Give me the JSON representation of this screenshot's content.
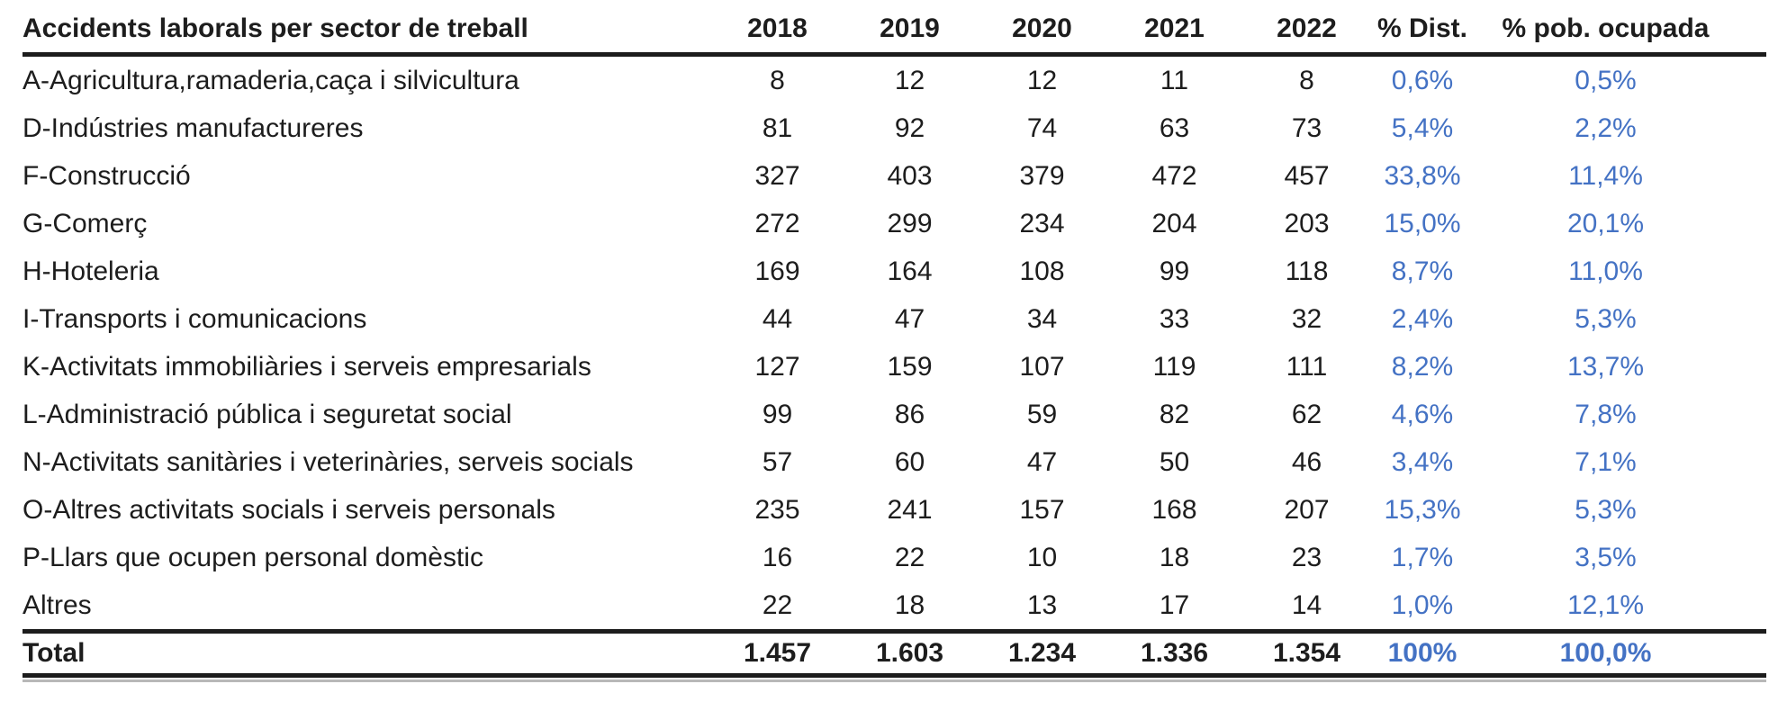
{
  "colors": {
    "accent_blue": "#4472C4",
    "text": "#1d1d1d",
    "rule_black": "#1c1c1c",
    "rule_gray": "#b8b8b8"
  },
  "table": {
    "header": {
      "sector": "Accidents laborals per sector de treball",
      "years": [
        "2018",
        "2019",
        "2020",
        "2021",
        "2022"
      ],
      "dist": "% Dist.",
      "pob": "% pob. ocupada"
    },
    "rows": [
      {
        "sector": "A-Agricultura,ramaderia,caça i silvicultura",
        "values": [
          "8",
          "12",
          "12",
          "11",
          "8"
        ],
        "dist": "0,6%",
        "pob": "0,5%"
      },
      {
        "sector": "D-Indústries manufactureres",
        "values": [
          "81",
          "92",
          "74",
          "63",
          "73"
        ],
        "dist": "5,4%",
        "pob": "2,2%"
      },
      {
        "sector": "F-Construcció",
        "values": [
          "327",
          "403",
          "379",
          "472",
          "457"
        ],
        "dist": "33,8%",
        "pob": "11,4%"
      },
      {
        "sector": "G-Comerç",
        "values": [
          "272",
          "299",
          "234",
          "204",
          "203"
        ],
        "dist": "15,0%",
        "pob": "20,1%"
      },
      {
        "sector": "H-Hoteleria",
        "values": [
          "169",
          "164",
          "108",
          "99",
          "118"
        ],
        "dist": "8,7%",
        "pob": "11,0%"
      },
      {
        "sector": "I-Transports i comunicacions",
        "values": [
          "44",
          "47",
          "34",
          "33",
          "32"
        ],
        "dist": "2,4%",
        "pob": "5,3%"
      },
      {
        "sector": "K-Activitats immobiliàries i serveis empresarials",
        "values": [
          "127",
          "159",
          "107",
          "119",
          "111"
        ],
        "dist": "8,2%",
        "pob": "13,7%"
      },
      {
        "sector": "L-Administració pública i seguretat social",
        "values": [
          "99",
          "86",
          "59",
          "82",
          "62"
        ],
        "dist": "4,6%",
        "pob": "7,8%"
      },
      {
        "sector": "N-Activitats sanitàries i veterinàries, serveis socials",
        "values": [
          "57",
          "60",
          "47",
          "50",
          "46"
        ],
        "dist": "3,4%",
        "pob": "7,1%"
      },
      {
        "sector": "O-Altres activitats socials i serveis personals",
        "values": [
          "235",
          "241",
          "157",
          "168",
          "207"
        ],
        "dist": "15,3%",
        "pob": "5,3%"
      },
      {
        "sector": "P-Llars que ocupen personal domèstic",
        "values": [
          "16",
          "22",
          "10",
          "18",
          "23"
        ],
        "dist": "1,7%",
        "pob": "3,5%"
      },
      {
        "sector": "Altres",
        "values": [
          "22",
          "18",
          "13",
          "17",
          "14"
        ],
        "dist": "1,0%",
        "pob": "12,1%"
      }
    ],
    "total": {
      "label": "Total",
      "values": [
        "1.457",
        "1.603",
        "1.234",
        "1.336",
        "1.354"
      ],
      "dist": "100%",
      "pob": "100,0%"
    }
  },
  "chart_data": {
    "type": "table",
    "title": "Accidents laborals per sector de treball",
    "columns": [
      "Accidents laborals per sector de treball",
      "2018",
      "2019",
      "2020",
      "2021",
      "2022",
      "% Dist.",
      "% pob. ocupada"
    ],
    "rows": [
      [
        "A-Agricultura,ramaderia,caça i silvicultura",
        8,
        12,
        12,
        11,
        8,
        "0,6%",
        "0,5%"
      ],
      [
        "D-Indústries manufactureres",
        81,
        92,
        74,
        63,
        73,
        "5,4%",
        "2,2%"
      ],
      [
        "F-Construcció",
        327,
        403,
        379,
        472,
        457,
        "33,8%",
        "11,4%"
      ],
      [
        "G-Comerç",
        272,
        299,
        234,
        204,
        203,
        "15,0%",
        "20,1%"
      ],
      [
        "H-Hoteleria",
        169,
        164,
        108,
        99,
        118,
        "8,7%",
        "11,0%"
      ],
      [
        "I-Transports i comunicacions",
        44,
        47,
        34,
        33,
        32,
        "2,4%",
        "5,3%"
      ],
      [
        "K-Activitats immobiliàries i serveis empresarials",
        127,
        159,
        107,
        119,
        111,
        "8,2%",
        "13,7%"
      ],
      [
        "L-Administració pública i seguretat social",
        99,
        86,
        59,
        82,
        62,
        "4,6%",
        "7,8%"
      ],
      [
        "N-Activitats sanitàries i veterinàries, serveis socials",
        57,
        60,
        47,
        50,
        46,
        "3,4%",
        "7,1%"
      ],
      [
        "O-Altres activitats socials i serveis personals",
        235,
        241,
        157,
        168,
        207,
        "15,3%",
        "5,3%"
      ],
      [
        "P-Llars que ocupen personal domèstic",
        16,
        22,
        10,
        18,
        23,
        "1,7%",
        "3,5%"
      ],
      [
        "Altres",
        22,
        18,
        13,
        17,
        14,
        "1,0%",
        "12,1%"
      ],
      [
        "Total",
        "1.457",
        "1.603",
        "1.234",
        "1.336",
        "1.354",
        "100%",
        "100,0%"
      ]
    ]
  }
}
